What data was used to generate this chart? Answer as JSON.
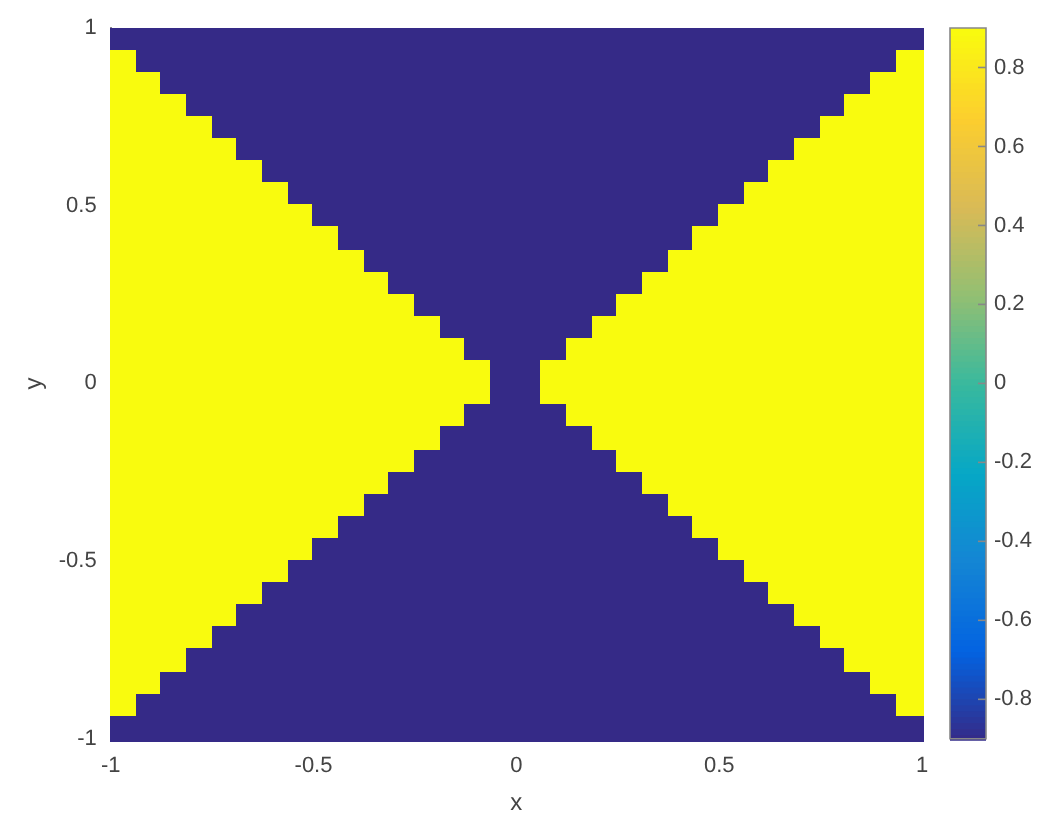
{
  "chart_data": {
    "type": "heatmap",
    "xlabel": "x",
    "ylabel": "y",
    "xlim": [
      -1,
      1
    ],
    "ylim": [
      -1,
      1
    ],
    "xticks": [
      -1,
      -0.5,
      0,
      0.5,
      1
    ],
    "yticks": [
      -1,
      -0.5,
      0,
      0.5,
      1
    ],
    "clim": [
      -0.9,
      0.9
    ],
    "cticks": [
      -0.8,
      -0.6,
      -0.4,
      -0.2,
      0,
      0.2,
      0.4,
      0.6,
      0.8
    ],
    "cells": [
      [
        -0.9,
        -0.9,
        -0.9,
        -0.9,
        -0.9,
        -0.9,
        -0.9,
        -0.9,
        -0.9,
        -0.9,
        -0.9,
        -0.9,
        -0.9,
        -0.9,
        -0.9,
        -0.9,
        -0.9,
        -0.9,
        -0.9,
        -0.9,
        -0.9,
        -0.9,
        -0.9,
        -0.9,
        -0.9,
        -0.9,
        -0.9,
        -0.9,
        -0.9,
        -0.9,
        -0.9,
        -0.9
      ],
      [
        0.9,
        -0.9,
        -0.9,
        -0.9,
        -0.9,
        -0.9,
        -0.9,
        -0.9,
        -0.9,
        -0.9,
        -0.9,
        -0.9,
        -0.9,
        -0.9,
        -0.9,
        -0.9,
        -0.9,
        -0.9,
        -0.9,
        -0.9,
        -0.9,
        -0.9,
        -0.9,
        -0.9,
        -0.9,
        -0.9,
        -0.9,
        -0.9,
        -0.9,
        -0.9,
        -0.9,
        0.9
      ],
      [
        0.9,
        0.9,
        -0.9,
        -0.9,
        -0.9,
        -0.9,
        -0.9,
        -0.9,
        -0.9,
        -0.9,
        -0.9,
        -0.9,
        -0.9,
        -0.9,
        -0.9,
        -0.9,
        -0.9,
        -0.9,
        -0.9,
        -0.9,
        -0.9,
        -0.9,
        -0.9,
        -0.9,
        -0.9,
        -0.9,
        -0.9,
        -0.9,
        -0.9,
        -0.9,
        0.9,
        0.9
      ],
      [
        0.9,
        0.9,
        0.9,
        -0.9,
        -0.9,
        -0.9,
        -0.9,
        -0.9,
        -0.9,
        -0.9,
        -0.9,
        -0.9,
        -0.9,
        -0.9,
        -0.9,
        -0.9,
        -0.9,
        -0.9,
        -0.9,
        -0.9,
        -0.9,
        -0.9,
        -0.9,
        -0.9,
        -0.9,
        -0.9,
        -0.9,
        -0.9,
        -0.9,
        0.9,
        0.9,
        0.9
      ],
      [
        0.9,
        0.9,
        0.9,
        0.9,
        -0.9,
        -0.9,
        -0.9,
        -0.9,
        -0.9,
        -0.9,
        -0.9,
        -0.9,
        -0.9,
        -0.9,
        -0.9,
        -0.9,
        -0.9,
        -0.9,
        -0.9,
        -0.9,
        -0.9,
        -0.9,
        -0.9,
        -0.9,
        -0.9,
        -0.9,
        -0.9,
        -0.9,
        0.9,
        0.9,
        0.9,
        0.9
      ],
      [
        0.9,
        0.9,
        0.9,
        0.9,
        0.9,
        -0.9,
        -0.9,
        -0.9,
        -0.9,
        -0.9,
        -0.9,
        -0.9,
        -0.9,
        -0.9,
        -0.9,
        -0.9,
        -0.9,
        -0.9,
        -0.9,
        -0.9,
        -0.9,
        -0.9,
        -0.9,
        -0.9,
        -0.9,
        -0.9,
        -0.9,
        0.9,
        0.9,
        0.9,
        0.9,
        0.9
      ],
      [
        0.9,
        0.9,
        0.9,
        0.9,
        0.9,
        0.9,
        -0.9,
        -0.9,
        -0.9,
        -0.9,
        -0.9,
        -0.9,
        -0.9,
        -0.9,
        -0.9,
        -0.9,
        -0.9,
        -0.9,
        -0.9,
        -0.9,
        -0.9,
        -0.9,
        -0.9,
        -0.9,
        -0.9,
        -0.9,
        0.9,
        0.9,
        0.9,
        0.9,
        0.9,
        0.9
      ],
      [
        0.9,
        0.9,
        0.9,
        0.9,
        0.9,
        0.9,
        0.9,
        -0.9,
        -0.9,
        -0.9,
        -0.9,
        -0.9,
        -0.9,
        -0.9,
        -0.9,
        -0.9,
        -0.9,
        -0.9,
        -0.9,
        -0.9,
        -0.9,
        -0.9,
        -0.9,
        -0.9,
        -0.9,
        0.9,
        0.9,
        0.9,
        0.9,
        0.9,
        0.9,
        0.9
      ],
      [
        0.9,
        0.9,
        0.9,
        0.9,
        0.9,
        0.9,
        0.9,
        0.9,
        -0.9,
        -0.9,
        -0.9,
        -0.9,
        -0.9,
        -0.9,
        -0.9,
        -0.9,
        -0.9,
        -0.9,
        -0.9,
        -0.9,
        -0.9,
        -0.9,
        -0.9,
        -0.9,
        0.9,
        0.9,
        0.9,
        0.9,
        0.9,
        0.9,
        0.9,
        0.9
      ],
      [
        0.9,
        0.9,
        0.9,
        0.9,
        0.9,
        0.9,
        0.9,
        0.9,
        0.9,
        -0.9,
        -0.9,
        -0.9,
        -0.9,
        -0.9,
        -0.9,
        -0.9,
        -0.9,
        -0.9,
        -0.9,
        -0.9,
        -0.9,
        -0.9,
        -0.9,
        0.9,
        0.9,
        0.9,
        0.9,
        0.9,
        0.9,
        0.9,
        0.9,
        0.9
      ],
      [
        0.9,
        0.9,
        0.9,
        0.9,
        0.9,
        0.9,
        0.9,
        0.9,
        0.9,
        0.9,
        -0.9,
        -0.9,
        -0.9,
        -0.9,
        -0.9,
        -0.9,
        -0.9,
        -0.9,
        -0.9,
        -0.9,
        -0.9,
        -0.9,
        0.9,
        0.9,
        0.9,
        0.9,
        0.9,
        0.9,
        0.9,
        0.9,
        0.9,
        0.9
      ],
      [
        0.9,
        0.9,
        0.9,
        0.9,
        0.9,
        0.9,
        0.9,
        0.9,
        0.9,
        0.9,
        0.9,
        -0.9,
        -0.9,
        -0.9,
        -0.9,
        -0.9,
        -0.9,
        -0.9,
        -0.9,
        -0.9,
        -0.9,
        0.9,
        0.9,
        0.9,
        0.9,
        0.9,
        0.9,
        0.9,
        0.9,
        0.9,
        0.9,
        0.9
      ],
      [
        0.9,
        0.9,
        0.9,
        0.9,
        0.9,
        0.9,
        0.9,
        0.9,
        0.9,
        0.9,
        0.9,
        0.9,
        -0.9,
        -0.9,
        -0.9,
        -0.9,
        -0.9,
        -0.9,
        -0.9,
        -0.9,
        0.9,
        0.9,
        0.9,
        0.9,
        0.9,
        0.9,
        0.9,
        0.9,
        0.9,
        0.9,
        0.9,
        0.9
      ],
      [
        0.9,
        0.9,
        0.9,
        0.9,
        0.9,
        0.9,
        0.9,
        0.9,
        0.9,
        0.9,
        0.9,
        0.9,
        0.9,
        -0.9,
        -0.9,
        -0.9,
        -0.9,
        -0.9,
        -0.9,
        0.9,
        0.9,
        0.9,
        0.9,
        0.9,
        0.9,
        0.9,
        0.9,
        0.9,
        0.9,
        0.9,
        0.9,
        0.9
      ],
      [
        0.9,
        0.9,
        0.9,
        0.9,
        0.9,
        0.9,
        0.9,
        0.9,
        0.9,
        0.9,
        0.9,
        0.9,
        0.9,
        0.9,
        -0.9,
        -0.9,
        -0.9,
        -0.9,
        0.9,
        0.9,
        0.9,
        0.9,
        0.9,
        0.9,
        0.9,
        0.9,
        0.9,
        0.9,
        0.9,
        0.9,
        0.9,
        0.9
      ],
      [
        0.9,
        0.9,
        0.9,
        0.9,
        0.9,
        0.9,
        0.9,
        0.9,
        0.9,
        0.9,
        0.9,
        0.9,
        0.9,
        0.9,
        0.9,
        -0.9,
        -0.9,
        0.9,
        0.9,
        0.9,
        0.9,
        0.9,
        0.9,
        0.9,
        0.9,
        0.9,
        0.9,
        0.9,
        0.9,
        0.9,
        0.9,
        0.9
      ],
      [
        0.9,
        0.9,
        0.9,
        0.9,
        0.9,
        0.9,
        0.9,
        0.9,
        0.9,
        0.9,
        0.9,
        0.9,
        0.9,
        0.9,
        0.9,
        -0.9,
        -0.9,
        0.9,
        0.9,
        0.9,
        0.9,
        0.9,
        0.9,
        0.9,
        0.9,
        0.9,
        0.9,
        0.9,
        0.9,
        0.9,
        0.9,
        0.9
      ],
      [
        0.9,
        0.9,
        0.9,
        0.9,
        0.9,
        0.9,
        0.9,
        0.9,
        0.9,
        0.9,
        0.9,
        0.9,
        0.9,
        0.9,
        -0.9,
        -0.9,
        -0.9,
        -0.9,
        0.9,
        0.9,
        0.9,
        0.9,
        0.9,
        0.9,
        0.9,
        0.9,
        0.9,
        0.9,
        0.9,
        0.9,
        0.9,
        0.9
      ],
      [
        0.9,
        0.9,
        0.9,
        0.9,
        0.9,
        0.9,
        0.9,
        0.9,
        0.9,
        0.9,
        0.9,
        0.9,
        0.9,
        -0.9,
        -0.9,
        -0.9,
        -0.9,
        -0.9,
        -0.9,
        0.9,
        0.9,
        0.9,
        0.9,
        0.9,
        0.9,
        0.9,
        0.9,
        0.9,
        0.9,
        0.9,
        0.9,
        0.9
      ],
      [
        0.9,
        0.9,
        0.9,
        0.9,
        0.9,
        0.9,
        0.9,
        0.9,
        0.9,
        0.9,
        0.9,
        0.9,
        -0.9,
        -0.9,
        -0.9,
        -0.9,
        -0.9,
        -0.9,
        -0.9,
        -0.9,
        0.9,
        0.9,
        0.9,
        0.9,
        0.9,
        0.9,
        0.9,
        0.9,
        0.9,
        0.9,
        0.9,
        0.9
      ],
      [
        0.9,
        0.9,
        0.9,
        0.9,
        0.9,
        0.9,
        0.9,
        0.9,
        0.9,
        0.9,
        0.9,
        -0.9,
        -0.9,
        -0.9,
        -0.9,
        -0.9,
        -0.9,
        -0.9,
        -0.9,
        -0.9,
        -0.9,
        0.9,
        0.9,
        0.9,
        0.9,
        0.9,
        0.9,
        0.9,
        0.9,
        0.9,
        0.9,
        0.9
      ],
      [
        0.9,
        0.9,
        0.9,
        0.9,
        0.9,
        0.9,
        0.9,
        0.9,
        0.9,
        0.9,
        -0.9,
        -0.9,
        -0.9,
        -0.9,
        -0.9,
        -0.9,
        -0.9,
        -0.9,
        -0.9,
        -0.9,
        -0.9,
        -0.9,
        0.9,
        0.9,
        0.9,
        0.9,
        0.9,
        0.9,
        0.9,
        0.9,
        0.9,
        0.9
      ],
      [
        0.9,
        0.9,
        0.9,
        0.9,
        0.9,
        0.9,
        0.9,
        0.9,
        0.9,
        -0.9,
        -0.9,
        -0.9,
        -0.9,
        -0.9,
        -0.9,
        -0.9,
        -0.9,
        -0.9,
        -0.9,
        -0.9,
        -0.9,
        -0.9,
        -0.9,
        0.9,
        0.9,
        0.9,
        0.9,
        0.9,
        0.9,
        0.9,
        0.9,
        0.9
      ],
      [
        0.9,
        0.9,
        0.9,
        0.9,
        0.9,
        0.9,
        0.9,
        0.9,
        -0.9,
        -0.9,
        -0.9,
        -0.9,
        -0.9,
        -0.9,
        -0.9,
        -0.9,
        -0.9,
        -0.9,
        -0.9,
        -0.9,
        -0.9,
        -0.9,
        -0.9,
        -0.9,
        0.9,
        0.9,
        0.9,
        0.9,
        0.9,
        0.9,
        0.9,
        0.9
      ],
      [
        0.9,
        0.9,
        0.9,
        0.9,
        0.9,
        0.9,
        0.9,
        -0.9,
        -0.9,
        -0.9,
        -0.9,
        -0.9,
        -0.9,
        -0.9,
        -0.9,
        -0.9,
        -0.9,
        -0.9,
        -0.9,
        -0.9,
        -0.9,
        -0.9,
        -0.9,
        -0.9,
        -0.9,
        0.9,
        0.9,
        0.9,
        0.9,
        0.9,
        0.9,
        0.9
      ],
      [
        0.9,
        0.9,
        0.9,
        0.9,
        0.9,
        0.9,
        -0.9,
        -0.9,
        -0.9,
        -0.9,
        -0.9,
        -0.9,
        -0.9,
        -0.9,
        -0.9,
        -0.9,
        -0.9,
        -0.9,
        -0.9,
        -0.9,
        -0.9,
        -0.9,
        -0.9,
        -0.9,
        -0.9,
        -0.9,
        0.9,
        0.9,
        0.9,
        0.9,
        0.9,
        0.9
      ],
      [
        0.9,
        0.9,
        0.9,
        0.9,
        0.9,
        -0.9,
        -0.9,
        -0.9,
        -0.9,
        -0.9,
        -0.9,
        -0.9,
        -0.9,
        -0.9,
        -0.9,
        -0.9,
        -0.9,
        -0.9,
        -0.9,
        -0.9,
        -0.9,
        -0.9,
        -0.9,
        -0.9,
        -0.9,
        -0.9,
        -0.9,
        0.9,
        0.9,
        0.9,
        0.9,
        0.9
      ],
      [
        0.9,
        0.9,
        0.9,
        0.9,
        -0.9,
        -0.9,
        -0.9,
        -0.9,
        -0.9,
        -0.9,
        -0.9,
        -0.9,
        -0.9,
        -0.9,
        -0.9,
        -0.9,
        -0.9,
        -0.9,
        -0.9,
        -0.9,
        -0.9,
        -0.9,
        -0.9,
        -0.9,
        -0.9,
        -0.9,
        -0.9,
        -0.9,
        0.9,
        0.9,
        0.9,
        0.9
      ],
      [
        0.9,
        0.9,
        0.9,
        -0.9,
        -0.9,
        -0.9,
        -0.9,
        -0.9,
        -0.9,
        -0.9,
        -0.9,
        -0.9,
        -0.9,
        -0.9,
        -0.9,
        -0.9,
        -0.9,
        -0.9,
        -0.9,
        -0.9,
        -0.9,
        -0.9,
        -0.9,
        -0.9,
        -0.9,
        -0.9,
        -0.9,
        -0.9,
        -0.9,
        0.9,
        0.9,
        0.9
      ],
      [
        0.9,
        0.9,
        -0.9,
        -0.9,
        -0.9,
        -0.9,
        -0.9,
        -0.9,
        -0.9,
        -0.9,
        -0.9,
        -0.9,
        -0.9,
        -0.9,
        -0.9,
        -0.9,
        -0.9,
        -0.9,
        -0.9,
        -0.9,
        -0.9,
        -0.9,
        -0.9,
        -0.9,
        -0.9,
        -0.9,
        -0.9,
        -0.9,
        -0.9,
        -0.9,
        0.9,
        0.9
      ],
      [
        0.9,
        -0.9,
        -0.9,
        -0.9,
        -0.9,
        -0.9,
        -0.9,
        -0.9,
        -0.9,
        -0.9,
        -0.9,
        -0.9,
        -0.9,
        -0.9,
        -0.9,
        -0.9,
        -0.9,
        -0.9,
        -0.9,
        -0.9,
        -0.9,
        -0.9,
        -0.9,
        -0.9,
        -0.9,
        -0.9,
        -0.9,
        -0.9,
        -0.9,
        -0.9,
        -0.9,
        0.9
      ],
      [
        -0.9,
        -0.9,
        -0.9,
        -0.9,
        -0.9,
        -0.9,
        -0.9,
        -0.9,
        -0.9,
        -0.9,
        -0.9,
        -0.9,
        -0.9,
        -0.9,
        -0.9,
        -0.9,
        -0.9,
        -0.9,
        -0.9,
        -0.9,
        -0.9,
        -0.9,
        -0.9,
        -0.9,
        -0.9,
        -0.9,
        -0.9,
        -0.9,
        -0.9,
        -0.9,
        -0.9,
        -0.9
      ]
    ]
  }
}
